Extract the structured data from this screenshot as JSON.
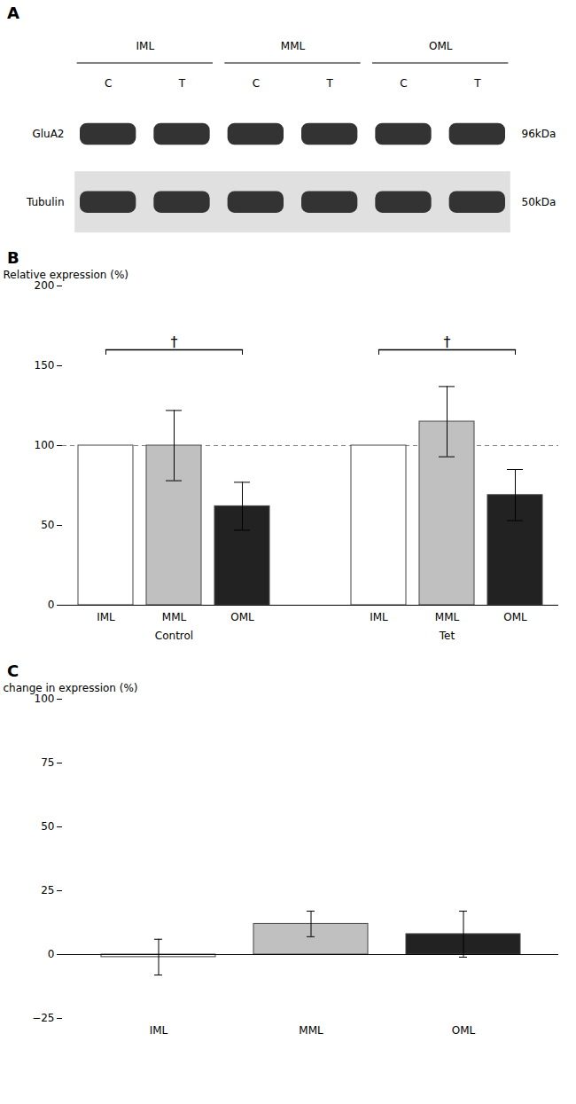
{
  "chart_data": [
    {
      "type": "blot",
      "title": "A",
      "categories": [
        "IML",
        "MML",
        "OML"
      ],
      "lanes": [
        "C",
        "T",
        "C",
        "T",
        "C",
        "T"
      ],
      "rows": [
        "GluA2",
        "Tubulin"
      ],
      "row_annotations": [
        "96kDa",
        "50kDa"
      ]
    },
    {
      "type": "grouped_bar",
      "title": "B",
      "ylabel": "Relative expression (%)",
      "categories": [
        "IML",
        "MML",
        "OML"
      ],
      "colors": [
        "#ffffff",
        "#c0c0c0",
        "#222222"
      ],
      "edge_color": "#444444",
      "groups": [
        {
          "name": "Control",
          "values": [
            100,
            100,
            62
          ],
          "errors": [
            0,
            22,
            15
          ]
        },
        {
          "name": "Tet",
          "values": [
            100,
            115,
            69
          ],
          "errors": [
            0,
            22,
            16
          ]
        }
      ],
      "ylim": [
        0,
        200
      ],
      "yticks": [
        0,
        50,
        100,
        150,
        200
      ],
      "reference_line": {
        "y": 100,
        "line_style": "dashed"
      },
      "significance": {
        "symbol": "†",
        "y": 160
      },
      "grid": false
    },
    {
      "type": "bar",
      "title": "C",
      "ylabel": "change in expression (%)",
      "categories": [
        "IML",
        "MML",
        "OML"
      ],
      "colors": [
        "#ffffff",
        "#c0c0c0",
        "#222222"
      ],
      "edge_color": "#444444",
      "values": [
        -1,
        12,
        8
      ],
      "errors": [
        7,
        5,
        9
      ],
      "ylim": [
        -25,
        100
      ],
      "yticks": [
        -25,
        0,
        25,
        50,
        75,
        100
      ],
      "reference_line": {
        "y": 0,
        "line_style": "solid"
      },
      "grid": false
    }
  ]
}
